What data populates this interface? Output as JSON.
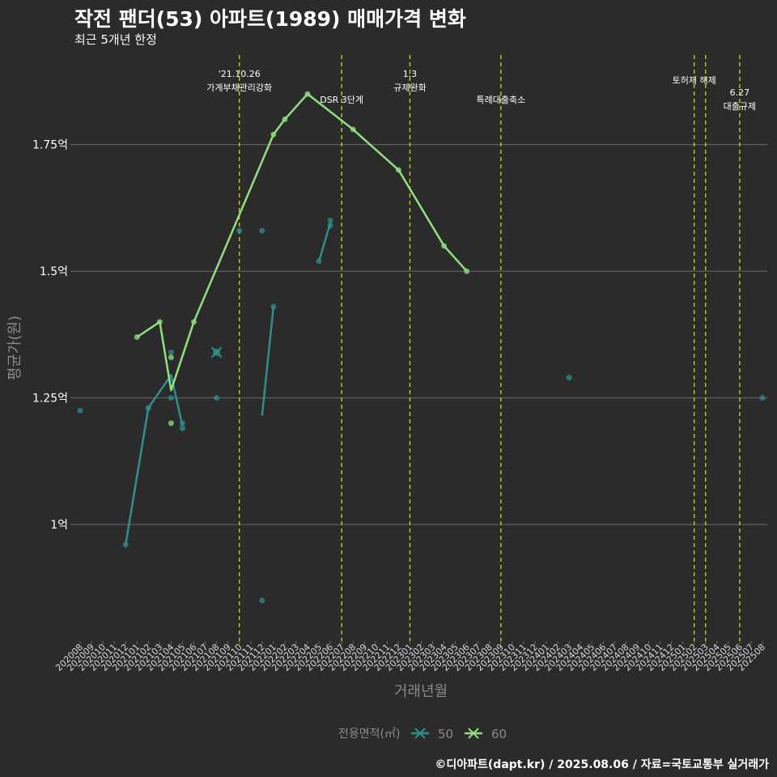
{
  "title": "작전 팬더(53) 아파트(1989) 매매가격 변화",
  "subtitle": "최근 5개년 한정",
  "caption": "©디아파트(dapt.kr) / 2025.08.06 / 자료=국토교통부 실거래가",
  "colors": {
    "background": "#2b2b2b",
    "grid": "#6a6a6a",
    "event_line": "#d4d420",
    "series_50": "#2e8f8f",
    "series_60": "#90e080"
  },
  "chart_data": {
    "type": "line",
    "xlabel": "거래년월",
    "ylabel": "평균가(원)",
    "ylim_eok": [
      0.77,
      1.93
    ],
    "y_ticks": [
      {
        "value": 1.0,
        "label": "1억"
      },
      {
        "value": 1.25,
        "label": "1.25억"
      },
      {
        "value": 1.5,
        "label": "1.5억"
      },
      {
        "value": 1.75,
        "label": "1.75억"
      }
    ],
    "x_categories": [
      "202008",
      "202009",
      "202010",
      "202011",
      "202012",
      "202101",
      "202102",
      "202103",
      "202104",
      "202105",
      "202106",
      "202107",
      "202108",
      "202109",
      "202110",
      "202111",
      "202112",
      "202201",
      "202202",
      "202203",
      "202204",
      "202205",
      "202206",
      "202207",
      "202208",
      "202209",
      "202210",
      "202211",
      "202212",
      "202301",
      "202302",
      "202303",
      "202304",
      "202305",
      "202306",
      "202307",
      "202308",
      "202309",
      "202310",
      "202311",
      "202312",
      "202401",
      "202402",
      "202403",
      "202404",
      "202405",
      "202406",
      "202407",
      "202408",
      "202409",
      "202410",
      "202411",
      "202412",
      "202501",
      "202502",
      "202503",
      "202504",
      "202505",
      "202506",
      "202507",
      "202508"
    ],
    "legend_title": "전용면적(㎡)",
    "series": [
      {
        "name": "50",
        "points": [
          {
            "x": "202008",
            "y": 1.225
          },
          {
            "x": "202012",
            "y": 0.96
          },
          {
            "x": "202102",
            "y": 1.23
          },
          {
            "x": "202104",
            "y": 1.34
          },
          {
            "x": "202104",
            "y": 1.25
          },
          {
            "x": "202105",
            "y": 1.2
          },
          {
            "x": "202105",
            "y": 1.19
          },
          {
            "x": "202108",
            "y": 1.25
          },
          {
            "x": "202110",
            "y": 1.58
          },
          {
            "x": "202112",
            "y": 1.58
          },
          {
            "x": "202112",
            "y": 0.85
          },
          {
            "x": "202201",
            "y": 1.43
          },
          {
            "x": "202205",
            "y": 1.52
          },
          {
            "x": "202206",
            "y": 1.6
          },
          {
            "x": "202206",
            "y": 1.59
          },
          {
            "x": "202403",
            "y": 1.29
          },
          {
            "x": "202508",
            "y": 1.25
          }
        ],
        "segments": [
          [
            {
              "x": "202012",
              "y": 0.96
            },
            {
              "x": "202102",
              "y": 1.23
            },
            {
              "x": "202104",
              "y": 1.295
            },
            {
              "x": "202105",
              "y": 1.195
            }
          ],
          [
            {
              "x": "202112",
              "y": 1.215
            },
            {
              "x": "202201",
              "y": 1.43
            }
          ],
          [
            {
              "x": "202205",
              "y": 1.52
            },
            {
              "x": "202206",
              "y": 1.595
            }
          ]
        ]
      },
      {
        "name": "60",
        "points": [
          {
            "x": "202101",
            "y": 1.37
          },
          {
            "x": "202103",
            "y": 1.4
          },
          {
            "x": "202104",
            "y": 1.33
          },
          {
            "x": "202104",
            "y": 1.2
          },
          {
            "x": "202106",
            "y": 1.4
          },
          {
            "x": "202201",
            "y": 1.77
          },
          {
            "x": "202202",
            "y": 1.8
          },
          {
            "x": "202204",
            "y": 1.85
          },
          {
            "x": "202208",
            "y": 1.78
          },
          {
            "x": "202212",
            "y": 1.7
          },
          {
            "x": "202304",
            "y": 1.55
          },
          {
            "x": "202306",
            "y": 1.5
          }
        ],
        "line": [
          {
            "x": "202101",
            "y": 1.37
          },
          {
            "x": "202103",
            "y": 1.4
          },
          {
            "x": "202104",
            "y": 1.265
          },
          {
            "x": "202106",
            "y": 1.4
          },
          {
            "x": "202201",
            "y": 1.77
          },
          {
            "x": "202202",
            "y": 1.8
          },
          {
            "x": "202204",
            "y": 1.85
          },
          {
            "x": "202208",
            "y": 1.78
          },
          {
            "x": "202212",
            "y": 1.7
          },
          {
            "x": "202304",
            "y": 1.55
          },
          {
            "x": "202306",
            "y": 1.5
          }
        ]
      }
    ],
    "special_marker": {
      "x": "202108",
      "y": 1.34,
      "series": "50"
    },
    "events": [
      {
        "x": "202110",
        "text": "'21.10.26\n가계부채관리강화",
        "row": "high"
      },
      {
        "x": "202207",
        "text": "DSR 3단계",
        "row": "low"
      },
      {
        "x": "202301",
        "text": "1.3\n규제완화",
        "row": "high"
      },
      {
        "x": "202309",
        "text": "특례대출축소",
        "row": "low"
      },
      {
        "x": "202502",
        "text": "토허제 해제",
        "row": "mid"
      },
      {
        "x": "202503",
        "text": "",
        "row": "mid"
      },
      {
        "x": "202506",
        "text": "6.27\n대출규제",
        "row": "right"
      }
    ]
  }
}
